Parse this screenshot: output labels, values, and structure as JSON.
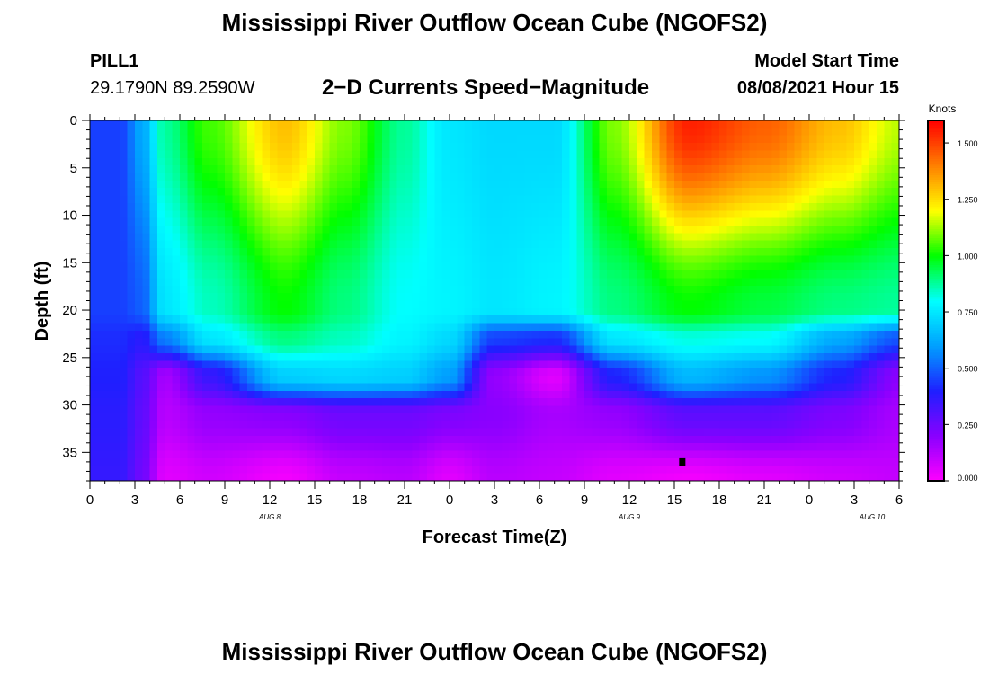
{
  "page": {
    "title": "Mississippi River Outflow Ocean Cube (NGOFS2)",
    "station_id": "PILL1",
    "station_coords": "29.1790N  89.2590W",
    "subtitle": "2−D Currents Speed−Magnitude",
    "model_start_label": "Model Start Time",
    "model_start_value": "08/08/2021 Hour 15",
    "footer_title": "Mississippi River Outflow Ocean Cube (NGOFS2)"
  },
  "chart_data": {
    "type": "heatmap",
    "xlabel": "Forecast Time(Z)",
    "ylabel": "Depth (ft)",
    "x_units": "hours from 2021-08-08 00Z",
    "xlim": [
      0,
      54
    ],
    "ylim": [
      0,
      38
    ],
    "y_inverted": true,
    "x_tick_labels": [
      "0",
      "3",
      "6",
      "9",
      "12",
      "15",
      "18",
      "21",
      "0",
      "3",
      "6",
      "9",
      "12",
      "15",
      "18",
      "21",
      "0",
      "3",
      "6"
    ],
    "y_tick_labels": [
      "0",
      "5",
      "10",
      "15",
      "20",
      "25",
      "30",
      "35"
    ],
    "date_labels": [
      "AUG 8",
      "AUG 9",
      "AUG 10"
    ],
    "colorbar": {
      "title": "Knots",
      "range": [
        0,
        1.6
      ],
      "tick_labels": [
        "0.000",
        "0.250",
        "0.500",
        "0.750",
        "1.000",
        "1.250",
        "1.500"
      ],
      "colors": [
        "#ff00ff",
        "#8a00ff",
        "#1f1fff",
        "#00a0ff",
        "#00ffff",
        "#00ff00",
        "#ffff00",
        "#ff8000",
        "#ff0000"
      ]
    },
    "depth_levels_ft": [
      0,
      20,
      23,
      27,
      31,
      38
    ],
    "speed_profiles_knots": [
      {
        "time": 0,
        "speeds": [
          0.45,
          0.45,
          0.42,
          0.4,
          0.38,
          0.36
        ]
      },
      {
        "time": 2,
        "speeds": [
          0.45,
          0.45,
          0.42,
          0.4,
          0.38,
          0.36
        ]
      },
      {
        "time": 3.5,
        "speeds": [
          0.62,
          0.5,
          0.38,
          0.3,
          0.28,
          0.25
        ]
      },
      {
        "time": 5,
        "speeds": [
          0.88,
          0.75,
          0.55,
          0.15,
          0.12,
          0.05
        ]
      },
      {
        "time": 8,
        "speeds": [
          1.05,
          0.85,
          0.75,
          0.35,
          0.18,
          0.08
        ]
      },
      {
        "time": 13,
        "speeds": [
          1.3,
          1.0,
          0.9,
          0.7,
          0.2,
          0.02
        ]
      },
      {
        "time": 17,
        "speeds": [
          1.1,
          0.9,
          0.85,
          0.72,
          0.25,
          0.1
        ]
      },
      {
        "time": 21,
        "speeds": [
          0.88,
          0.8,
          0.78,
          0.7,
          0.25,
          0.12
        ]
      },
      {
        "time": 24,
        "speeds": [
          0.75,
          0.78,
          0.72,
          0.6,
          0.22,
          0.05
        ]
      },
      {
        "time": 27,
        "speeds": [
          0.72,
          0.75,
          0.45,
          0.18,
          0.2,
          0.12
        ]
      },
      {
        "time": 31,
        "speeds": [
          0.72,
          0.78,
          0.42,
          0.05,
          0.15,
          0.1
        ]
      },
      {
        "time": 35,
        "speeds": [
          1.1,
          0.9,
          0.75,
          0.4,
          0.18,
          0.05
        ]
      },
      {
        "time": 40,
        "speeds": [
          1.55,
          1.0,
          0.82,
          0.65,
          0.28,
          0.02
        ]
      },
      {
        "time": 45,
        "speeds": [
          1.45,
          0.95,
          0.8,
          0.58,
          0.28,
          0.05
        ]
      },
      {
        "time": 50,
        "speeds": [
          1.3,
          0.9,
          0.62,
          0.4,
          0.22,
          0.08
        ]
      },
      {
        "time": 54,
        "speeds": [
          1.15,
          0.88,
          0.48,
          0.2,
          0.15,
          0.1
        ]
      }
    ],
    "current_time_marker": {
      "time": 39.5,
      "depth": 36
    }
  }
}
